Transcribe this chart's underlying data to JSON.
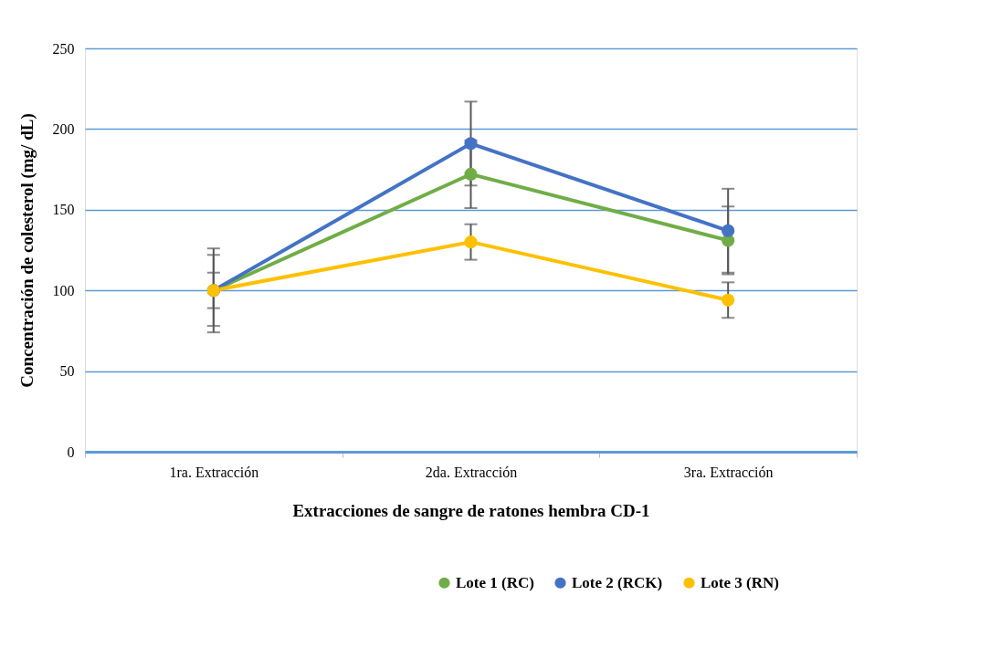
{
  "chart_data": {
    "type": "line",
    "xlabel": "Extracciones de sangre de ratones hembra CD-1",
    "ylabel": "Concentración de colesterol (mg/ dL)",
    "categories": [
      "1ra. Extracción",
      "2da. Extracción",
      "3ra. Extracción"
    ],
    "series": [
      {
        "name": "Lote 1 (RC)",
        "color": "#70ad47",
        "values": [
          100,
          172,
          131
        ],
        "errors": [
          22,
          21,
          21
        ]
      },
      {
        "name": "Lote 2 (RCK)",
        "color": "#4472c4",
        "values": [
          100,
          191,
          137
        ],
        "errors": [
          26,
          26,
          26
        ]
      },
      {
        "name": "Lote 3 (RN)",
        "color": "#ffc000",
        "values": [
          100,
          130,
          94
        ],
        "errors": [
          11,
          11,
          11
        ]
      }
    ],
    "ylim": [
      0,
      250
    ],
    "yticks": [
      0,
      50,
      100,
      150,
      200,
      250
    ],
    "grid": "y",
    "legend": "bottom right",
    "marker": "circle",
    "line_style": "solid"
  }
}
